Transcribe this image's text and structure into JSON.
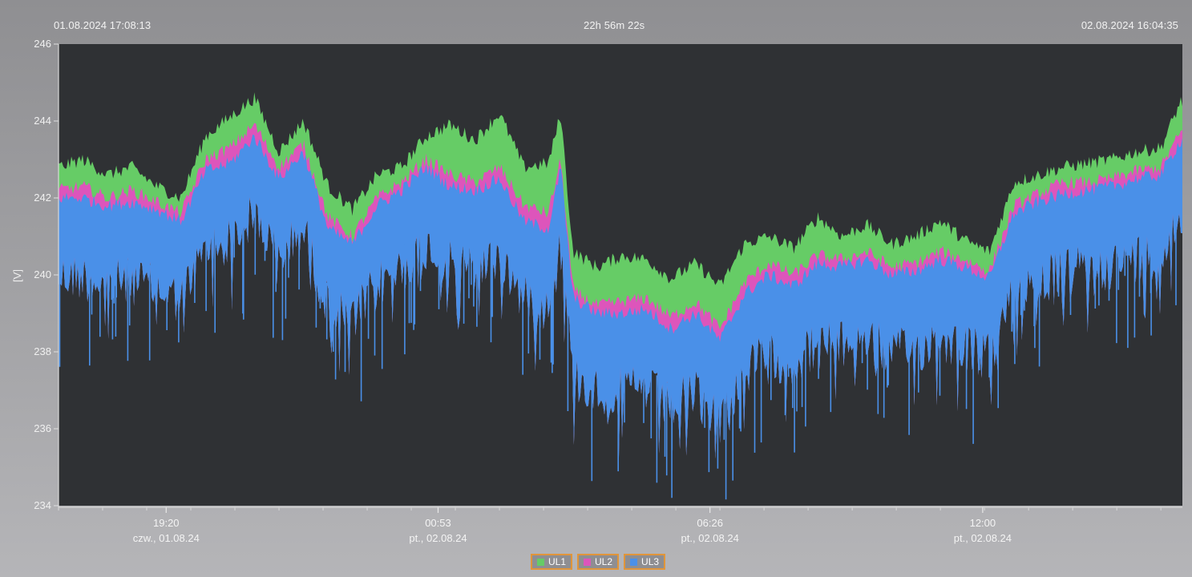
{
  "header": {
    "start": "01.08.2024 17:08:13",
    "duration": "22h 56m 22s",
    "end": "02.08.2024 16:04:35"
  },
  "chart_data": {
    "type": "area",
    "ylabel": "[V]",
    "ylim": [
      234,
      246
    ],
    "yticks": [
      234,
      236,
      238,
      240,
      242,
      244,
      246
    ],
    "x_range_hours": [
      0,
      22.939
    ],
    "xticks": [
      {
        "t": 2.197,
        "time": "19:20",
        "date": "czw., 01.08.24"
      },
      {
        "t": 7.747,
        "time": "00:53",
        "date": "pt., 02.08.24"
      },
      {
        "t": 13.297,
        "time": "06:26",
        "date": "pt., 02.08.24"
      },
      {
        "t": 18.863,
        "time": "12:00",
        "date": "pt., 02.08.24"
      }
    ],
    "grid": false,
    "legend_position": "bottom",
    "colors": {
      "UL1": "#66cc66",
      "UL2": "#dd55bb",
      "UL3": "#4a90e8",
      "plot_bg": "#2f3134"
    },
    "series": [
      {
        "name": "UL1",
        "x": [
          0,
          0.5,
          1,
          1.5,
          2,
          2.5,
          3,
          3.5,
          4,
          4.5,
          5,
          5.5,
          6,
          6.5,
          7,
          7.5,
          8,
          8.5,
          9,
          9.5,
          10,
          10.25,
          10.5,
          11,
          11.5,
          12,
          12.5,
          13,
          13.5,
          14,
          14.5,
          15,
          15.5,
          16,
          16.5,
          17,
          17.5,
          18,
          18.5,
          19,
          19.5,
          20,
          20.5,
          21,
          21.5,
          22,
          22.5,
          22.9
        ],
        "values": [
          242.8,
          243.0,
          242.6,
          242.8,
          242.3,
          242.0,
          243.6,
          244.1,
          244.6,
          243.2,
          244.0,
          242.3,
          241.7,
          242.6,
          242.8,
          243.6,
          243.9,
          243.5,
          244.2,
          242.8,
          242.9,
          244.2,
          240.6,
          240.2,
          240.5,
          240.4,
          239.9,
          240.3,
          239.7,
          240.8,
          241.0,
          240.7,
          241.5,
          241.0,
          241.3,
          240.8,
          241.0,
          241.4,
          240.9,
          240.6,
          242.4,
          242.6,
          242.8,
          242.9,
          243.0,
          243.2,
          243.3,
          244.5
        ]
      },
      {
        "name": "UL2",
        "x": [
          0,
          0.5,
          1,
          1.5,
          2,
          2.5,
          3,
          3.5,
          4,
          4.5,
          5,
          5.5,
          6,
          6.5,
          7,
          7.5,
          8,
          8.5,
          9,
          9.5,
          10,
          10.25,
          10.5,
          11,
          11.5,
          12,
          12.5,
          13,
          13.5,
          14,
          14.5,
          15,
          15.5,
          16,
          16.5,
          17,
          17.5,
          18,
          18.5,
          19,
          19.5,
          20,
          20.5,
          21,
          21.5,
          22,
          22.5,
          22.9
        ],
        "values": [
          242.2,
          242.3,
          242.0,
          242.2,
          241.9,
          241.6,
          243.0,
          243.3,
          243.9,
          242.8,
          243.4,
          241.5,
          241.0,
          242.0,
          242.4,
          243.0,
          242.6,
          242.4,
          242.8,
          241.8,
          241.6,
          243.0,
          239.6,
          239.2,
          239.3,
          239.4,
          238.9,
          239.3,
          238.6,
          239.8,
          240.3,
          240.0,
          240.5,
          240.4,
          240.6,
          240.2,
          240.3,
          240.6,
          240.4,
          240.1,
          241.8,
          242.1,
          242.4,
          242.4,
          242.5,
          242.7,
          242.8,
          243.7
        ]
      },
      {
        "name": "UL3",
        "x": [
          0,
          0.5,
          1,
          1.5,
          2,
          2.5,
          3,
          3.5,
          4,
          4.5,
          5,
          5.5,
          6,
          6.5,
          7,
          7.5,
          8,
          8.5,
          9,
          9.5,
          10,
          10.25,
          10.5,
          11,
          11.5,
          12,
          12.5,
          13,
          13.5,
          14,
          14.5,
          15,
          15.5,
          16,
          16.5,
          17,
          17.5,
          18,
          18.5,
          19,
          19.5,
          20,
          20.5,
          21,
          21.5,
          22,
          22.5,
          22.9
        ],
        "values": [
          242.0,
          242.0,
          241.8,
          241.9,
          241.7,
          241.4,
          242.7,
          242.9,
          243.6,
          242.5,
          243.2,
          241.2,
          240.8,
          241.8,
          242.2,
          242.8,
          242.3,
          242.2,
          242.5,
          241.4,
          241.2,
          242.8,
          239.4,
          239.0,
          239.0,
          239.1,
          238.6,
          239.0,
          238.3,
          239.5,
          240.0,
          239.7,
          240.3,
          240.2,
          240.4,
          240.0,
          240.1,
          240.4,
          240.2,
          239.9,
          241.6,
          241.9,
          242.1,
          242.2,
          242.3,
          242.5,
          242.6,
          243.5
        ]
      }
    ]
  }
}
